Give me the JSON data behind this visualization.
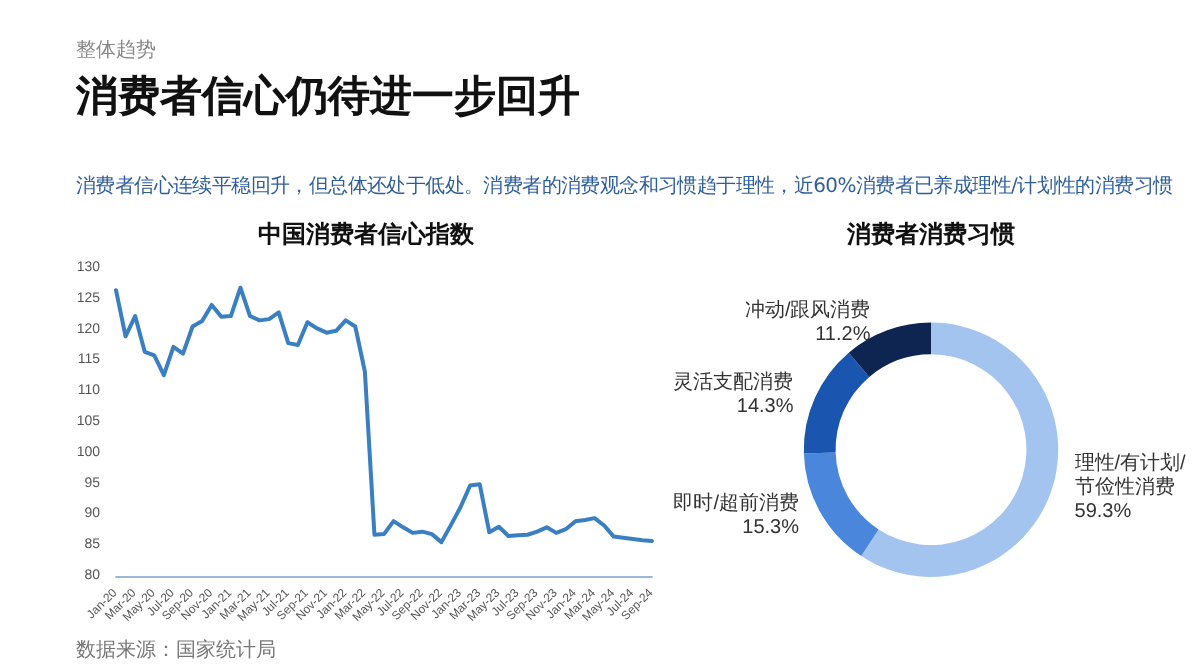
{
  "chart_data": [
    {
      "type": "other",
      "title": "消费者信心仍待进一步回升",
      "subtitle": "消费者信心连续平稳回升，但总体还处于低处。消费者的消费观念和习惯趋于理性，近60%消费者已养成理性/计划性的消费习惯",
      "annotations": [
        "整体趋势",
        "数据来源：国家统计局"
      ]
    },
    {
      "type": "line",
      "title": "中国消费者信心指数",
      "categories": [
        "Jan-20",
        null,
        "Mar-20",
        null,
        "May-20",
        null,
        "Jul-20",
        null,
        "Sep-20",
        null,
        "Nov-20",
        null,
        "Jan-21",
        null,
        "Mar-21",
        null,
        "May-21",
        null,
        "Jul-21",
        null,
        "Sep-21",
        null,
        "Nov-21",
        null,
        "Jan-22",
        null,
        "Mar-22",
        null,
        "May-22",
        null,
        "Jul-22",
        null,
        "Sep-22",
        null,
        "Nov-22",
        null,
        "Jan-23",
        null,
        "Mar-23",
        null,
        "May-23",
        null,
        "Jul-23",
        null,
        "Sep-23",
        null,
        "Nov-23",
        null,
        "Jan-24",
        null,
        "Mar-24",
        null,
        "May-24",
        null,
        "Jul-24",
        null,
        "Sep-24"
      ],
      "series": [
        {
          "color": "#3a7fc1",
          "values": [
            126.4,
            118.9,
            122.2,
            116.4,
            115.8,
            112.6,
            117.2,
            116.1,
            120.5,
            121.4,
            124.0,
            122.1,
            122.2,
            126.8,
            122.2,
            121.5,
            121.7,
            122.8,
            117.8,
            117.5,
            121.2,
            120.2,
            119.5,
            119.8,
            121.5,
            120.5,
            113.2,
            86.7,
            86.8,
            88.9,
            87.9,
            87.0,
            87.2,
            86.8,
            85.5,
            88.3,
            91.2,
            94.7,
            94.9,
            87.1,
            88.0,
            86.5,
            86.6,
            86.7,
            87.2,
            87.9,
            87.0,
            87.6,
            88.9,
            89.1,
            89.4,
            88.2,
            86.4,
            86.2,
            86.0,
            85.8,
            85.7
          ]
        }
      ],
      "ylim": [
        80,
        130
      ],
      "yticks": [
        80,
        85,
        90,
        95,
        100,
        105,
        110,
        115,
        120,
        125,
        130
      ],
      "grid": false,
      "marker": "none",
      "line_style": "solid",
      "legend": false
    },
    {
      "type": "donut",
      "title": "消费者消费习惯",
      "categories": [
        "理性/有计划/节俭性消费",
        "即时/超前消费",
        "灵活支配消费",
        "冲动/跟风消费"
      ],
      "values": [
        59.3,
        15.3,
        14.3,
        11.2
      ],
      "colors": [
        "#a4c4f0",
        "#4a87dc",
        "#1a55b0",
        "#0d2550"
      ],
      "value_labels": [
        "59.3%",
        "15.3%",
        "14.3%",
        "11.2%"
      ],
      "legend": false
    }
  ]
}
